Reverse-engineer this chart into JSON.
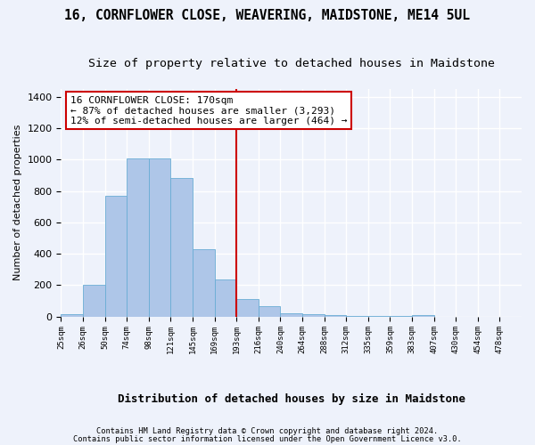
{
  "title": "16, CORNFLOWER CLOSE, WEAVERING, MAIDSTONE, ME14 5UL",
  "subtitle": "Size of property relative to detached houses in Maidstone",
  "xlabel": "Distribution of detached houses by size in Maidstone",
  "ylabel": "Number of detached properties",
  "footer1": "Contains HM Land Registry data © Crown copyright and database right 2024.",
  "footer2": "Contains public sector information licensed under the Open Government Licence v3.0.",
  "annotation_line1": "16 CORNFLOWER CLOSE: 170sqm",
  "annotation_line2": "← 87% of detached houses are smaller (3,293)",
  "annotation_line3": "12% of semi-detached houses are larger (464) →",
  "vline_index": 7,
  "bar_color": "#aec6e8",
  "bar_edge_color": "#6aadd5",
  "vline_color": "#cc0000",
  "annotation_box_edge": "#cc0000",
  "categories": [
    "25sqm",
    "26sqm",
    "50sqm",
    "74sqm",
    "98sqm",
    "121sqm",
    "145sqm",
    "169sqm",
    "193sqm",
    "216sqm",
    "240sqm",
    "264sqm",
    "288sqm",
    "312sqm",
    "335sqm",
    "359sqm",
    "383sqm",
    "407sqm",
    "430sqm",
    "454sqm",
    "478sqm"
  ],
  "values": [
    15,
    200,
    770,
    1010,
    1010,
    880,
    430,
    235,
    110,
    65,
    20,
    15,
    10,
    5,
    1,
    1,
    10,
    0,
    0,
    0,
    0
  ],
  "ylim": [
    0,
    1450
  ],
  "yticks": [
    0,
    200,
    400,
    600,
    800,
    1000,
    1200,
    1400
  ],
  "background_color": "#eef2fb",
  "grid_color": "#ffffff",
  "title_fontsize": 10.5,
  "subtitle_fontsize": 9.5,
  "ylabel_fontsize": 8,
  "xlabel_fontsize": 9,
  "tick_fontsize": 6.5,
  "ytick_fontsize": 8,
  "annotation_fontsize": 8
}
